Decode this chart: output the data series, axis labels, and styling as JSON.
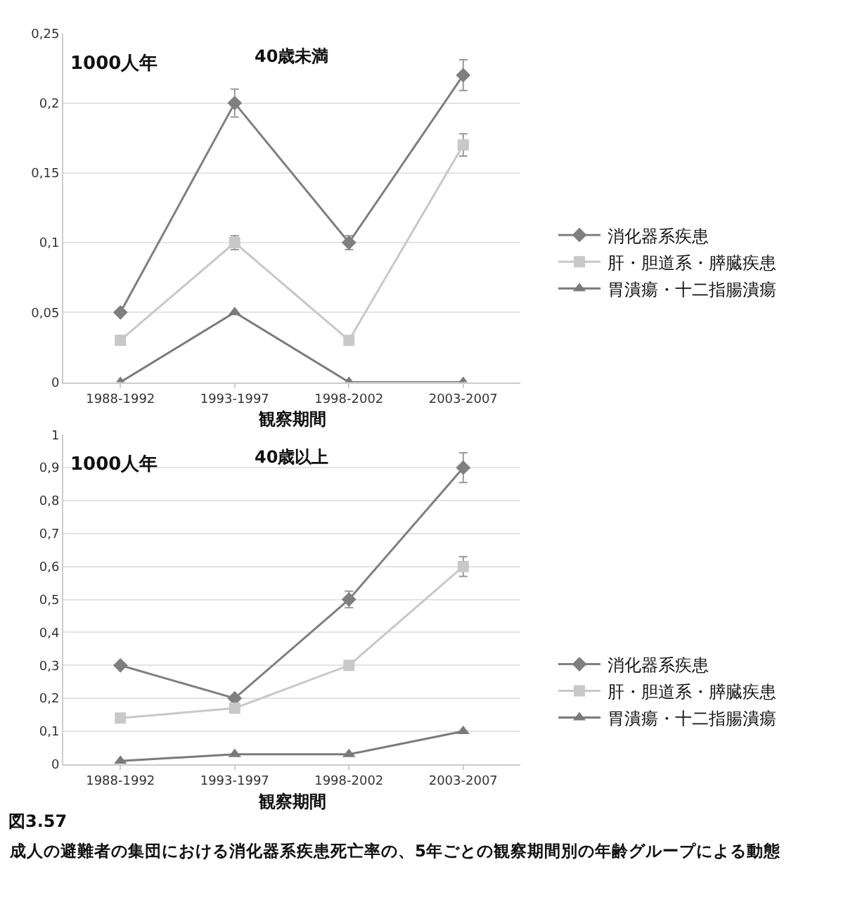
{
  "chart_data": [
    {
      "type": "line",
      "title": "40歳未満",
      "ylabel": "1000人年",
      "xlabel": "観察期間",
      "categories": [
        "1988-1992",
        "1993-1997",
        "1998-2002",
        "2003-2007"
      ],
      "ylim": [
        0,
        0.25
      ],
      "yticks": [
        0,
        {
          "value": 0.05,
          "label": "0,05"
        },
        {
          "value": 0.1,
          "label": "0,1"
        },
        {
          "value": 0.15,
          "label": "0,15"
        },
        {
          "value": 0.2,
          "label": "0,2"
        },
        {
          "value": 0.25,
          "label": "0,25"
        }
      ],
      "grid": "y",
      "legend": "right",
      "line_style": "solid",
      "series": [
        {
          "name": "消化器系疾患",
          "color": "#7f7f7f",
          "marker": "diamond",
          "values": [
            0.05,
            0.2,
            0.1,
            0.22
          ],
          "errors": [
            null,
            0.01,
            0.005,
            0.011
          ]
        },
        {
          "name": "肝・胆道系・膵臓疾患",
          "color": "#c8c8c8",
          "marker": "square",
          "values": [
            0.03,
            0.1,
            0.03,
            0.17
          ],
          "errors": [
            null,
            0.005,
            null,
            0.008
          ]
        },
        {
          "name": "胃潰瘍・十二指腸潰瘍",
          "color": "#7a7a7a",
          "marker": "triangle",
          "values": [
            0,
            0.05,
            0,
            0
          ]
        }
      ]
    },
    {
      "type": "line",
      "title": "40歳以上",
      "ylabel": "1000人年",
      "xlabel": "観察期間",
      "categories": [
        "1988-1992",
        "1993-1997",
        "1998-2002",
        "2003-2007"
      ],
      "ylim": [
        0,
        1
      ],
      "yticks": [
        0,
        {
          "value": 0.1,
          "label": "0,1"
        },
        {
          "value": 0.2,
          "label": "0,2"
        },
        {
          "value": 0.3,
          "label": "0,3"
        },
        {
          "value": 0.4,
          "label": "0,4"
        },
        {
          "value": 0.5,
          "label": "0,5"
        },
        {
          "value": 0.6,
          "label": "0,6"
        },
        {
          "value": 0.7,
          "label": "0,7"
        },
        {
          "value": 0.8,
          "label": "0,8"
        },
        {
          "value": 0.9,
          "label": "0,9"
        },
        1
      ],
      "grid": "y",
      "legend": "right",
      "line_style": "solid",
      "annotations": [
        "図3.57",
        "成人の避難者の集団における消化器系疾患死亡率の、5年ごとの観察期間別の年齢グループによる動態"
      ],
      "series": [
        {
          "name": "消化器系疾患",
          "color": "#7f7f7f",
          "marker": "diamond",
          "values": [
            0.3,
            0.2,
            0.5,
            0.9
          ],
          "errors": [
            null,
            null,
            0.025,
            0.045
          ]
        },
        {
          "name": "肝・胆道系・膵臓疾患",
          "color": "#c8c8c8",
          "marker": "square",
          "values": [
            0.14,
            0.17,
            0.3,
            0.6
          ],
          "errors": [
            null,
            null,
            null,
            0.03
          ]
        },
        {
          "name": "胃潰瘍・十二指腸潰瘍",
          "color": "#7a7a7a",
          "marker": "triangle",
          "values": [
            0.01,
            0.03,
            0.03,
            0.1
          ]
        }
      ]
    }
  ]
}
